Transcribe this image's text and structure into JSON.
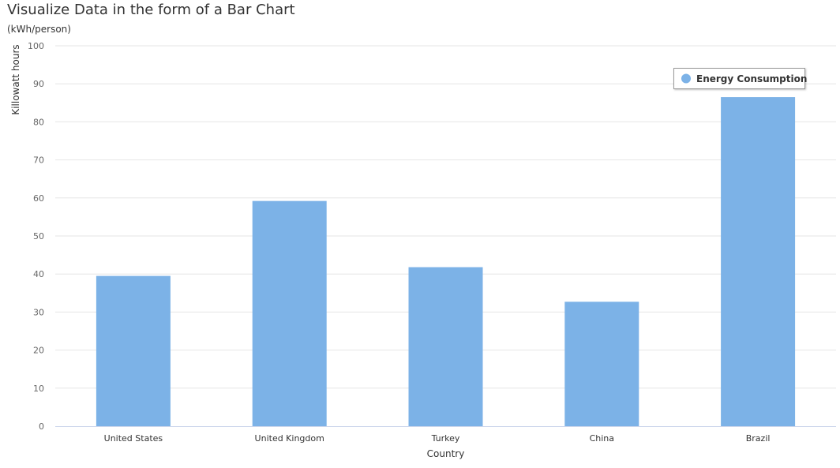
{
  "chart_data": {
    "type": "bar",
    "title": "Visualize Data in the form of a Bar Chart",
    "subtitle": "(kWh/person)",
    "xlabel": "Country",
    "ylabel": "Killowatt hours",
    "categories": [
      "United States",
      "United Kingdom",
      "Turkey",
      "China",
      "Brazil"
    ],
    "series": [
      {
        "name": "Energy Consumption",
        "values": [
          39.5,
          59.2,
          41.8,
          32.7,
          86.5
        ]
      }
    ],
    "ylim": [
      0,
      100
    ],
    "yticks": [
      "0",
      "10",
      "20",
      "30",
      "40",
      "50",
      "60",
      "70",
      "80",
      "90",
      "100"
    ],
    "grid": true,
    "legend_position": "top-right",
    "colors": {
      "bar": "#7cb2e7",
      "grid": "#e6e6e6",
      "axis": "#ccd6eb",
      "text": "#333333",
      "tick_text": "#666666"
    }
  }
}
